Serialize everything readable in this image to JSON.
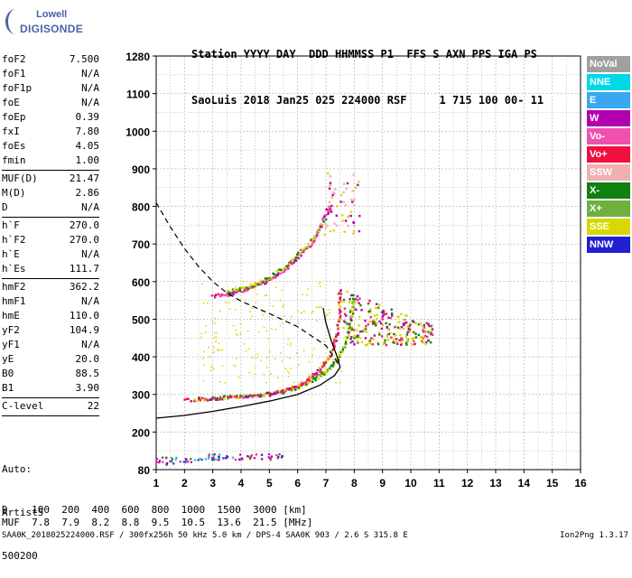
{
  "logo": {
    "line1": "Lowell",
    "line2": "DIGISONDE"
  },
  "header": {
    "line1": "Station YYYY DAY  DDD HHMMSS P1  FFS S AXN PPS IGA PS",
    "line2": "SaoLuis 2018 Jan25 025 224000 RSF     1 715 100 00- 11"
  },
  "params": [
    {
      "name": "foF2",
      "value": "7.500"
    },
    {
      "name": "foF1",
      "value": "N/A"
    },
    {
      "name": "foF1p",
      "value": "N/A"
    },
    {
      "name": "foE",
      "value": "N/A"
    },
    {
      "name": "foEp",
      "value": "0.39"
    },
    {
      "name": "fxI",
      "value": "7.80"
    },
    {
      "name": "foEs",
      "value": "4.05"
    },
    {
      "name": "fmin",
      "value": "1.00",
      "sep": true
    },
    {
      "name": "MUF(D)",
      "value": "21.47"
    },
    {
      "name": "M(D)",
      "value": "2.86"
    },
    {
      "name": "D",
      "value": "N/A",
      "sep": true
    },
    {
      "name": "h`F",
      "value": "270.0"
    },
    {
      "name": "h`F2",
      "value": "270.0"
    },
    {
      "name": "h`E",
      "value": "N/A"
    },
    {
      "name": "h`Es",
      "value": "111.7",
      "sep": true
    },
    {
      "name": "hmF2",
      "value": "362.2"
    },
    {
      "name": "hmF1",
      "value": "N/A"
    },
    {
      "name": "hmE",
      "value": "110.0"
    },
    {
      "name": "yF2",
      "value": "104.9"
    },
    {
      "name": "yF1",
      "value": "N/A"
    },
    {
      "name": "yE",
      "value": "20.0"
    },
    {
      "name": "B0",
      "value": "88.5"
    },
    {
      "name": "B1",
      "value": "3.90",
      "sep": true
    },
    {
      "name": "C-level",
      "value": "22",
      "sep": true
    }
  ],
  "auto": {
    "line1": "Auto:",
    "line2": "Artist5",
    "line3": "500200"
  },
  "legend": [
    {
      "label": "NoVal",
      "color": "#a0a0a0"
    },
    {
      "label": "NNE",
      "color": "#00d8e8"
    },
    {
      "label": "E",
      "color": "#3aa8f0"
    },
    {
      "label": "W",
      "color": "#b000b0"
    },
    {
      "label": "Vo-",
      "color": "#f050b0"
    },
    {
      "label": "Vo+",
      "color": "#f01040"
    },
    {
      "label": "SSW",
      "color": "#f0b0b0"
    },
    {
      "label": "X-",
      "color": "#108010"
    },
    {
      "label": "X+",
      "color": "#70b040"
    },
    {
      "label": "SSE",
      "color": "#d8d800"
    },
    {
      "label": "NNW",
      "color": "#2020d0"
    }
  ],
  "muf_table": {
    "d_label": "D",
    "d_values": [
      "100",
      "200",
      "400",
      "600",
      "800",
      "1000",
      "1500",
      "3000"
    ],
    "d_unit": "[km]",
    "muf_label": "MUF",
    "muf_values": [
      "7.8",
      "7.9",
      "8.2",
      "8.8",
      "9.5",
      "10.5",
      "13.6",
      "21.5"
    ],
    "muf_unit": "[MHz]"
  },
  "footer": "SAA0K_2018025224000.RSF / 300fx256h 50 kHz 5.0 km / DPS-4 SAA0K 903 / 2.6 S 315.8 E",
  "version": "Ion2Png 1.3.17",
  "chart_data": {
    "type": "scatter",
    "xlim": [
      1,
      16
    ],
    "ylim": [
      80,
      1280
    ],
    "x_ticks": [
      1,
      2,
      3,
      4,
      5,
      6,
      7,
      8,
      9,
      10,
      11,
      12,
      13,
      14,
      15,
      16
    ],
    "y_ticks": [
      80,
      200,
      300,
      400,
      500,
      600,
      700,
      800,
      900,
      1000,
      1100,
      1280
    ],
    "grid": true,
    "colors": {
      "frame": "#000000",
      "grid": "#9a9a9a",
      "profile": "#000000",
      "ordinary": "#e8287a",
      "extraordinary": "#108010",
      "spread": "#d8d800",
      "westward": "#b000b0",
      "low": "#2020d0"
    },
    "trace_o": [
      [
        2.0,
        284
      ],
      [
        3.0,
        288
      ],
      [
        4.0,
        292
      ],
      [
        5.0,
        300
      ],
      [
        5.5,
        310
      ],
      [
        6.0,
        322
      ],
      [
        6.5,
        345
      ],
      [
        6.9,
        375
      ],
      [
        7.2,
        410
      ],
      [
        7.4,
        460
      ],
      [
        7.5,
        520
      ],
      [
        7.5,
        580
      ]
    ],
    "trace_x": [
      [
        2.5,
        288
      ],
      [
        3.5,
        292
      ],
      [
        4.5,
        297
      ],
      [
        5.5,
        306
      ],
      [
        6.0,
        318
      ],
      [
        6.5,
        336
      ],
      [
        7.0,
        360
      ],
      [
        7.4,
        390
      ],
      [
        7.7,
        430
      ],
      [
        7.9,
        500
      ],
      [
        8.0,
        560
      ]
    ],
    "trace_2hop": [
      [
        3.0,
        560
      ],
      [
        3.5,
        566
      ],
      [
        4.0,
        575
      ],
      [
        4.5,
        588
      ],
      [
        5.0,
        605
      ],
      [
        5.5,
        630
      ],
      [
        6.0,
        662
      ],
      [
        6.5,
        700
      ],
      [
        6.8,
        740
      ],
      [
        7.0,
        780
      ],
      [
        7.2,
        800
      ]
    ],
    "trace_2hop_x": [
      [
        3.5,
        570
      ],
      [
        4.0,
        580
      ],
      [
        4.5,
        592
      ],
      [
        5.0,
        610
      ],
      [
        5.5,
        636
      ],
      [
        6.0,
        670
      ],
      [
        6.5,
        708
      ],
      [
        7.0,
        770
      ]
    ],
    "spread_f": [
      [
        7.6,
        480
      ],
      [
        10.8,
        530
      ]
    ],
    "es_trace": [
      [
        1.0,
        105
      ],
      [
        5.5,
        120
      ]
    ],
    "dashed_curve": [
      [
        1.0,
        810
      ],
      [
        1.5,
        745
      ],
      [
        2.0,
        688
      ],
      [
        2.5,
        640
      ],
      [
        3.0,
        600
      ],
      [
        3.5,
        570
      ],
      [
        4.0,
        548
      ],
      [
        5.0,
        515
      ],
      [
        6.0,
        480
      ],
      [
        7.0,
        430
      ],
      [
        7.5,
        375
      ]
    ],
    "profile_curve": [
      [
        1.0,
        237
      ],
      [
        2.0,
        244
      ],
      [
        3.0,
        255
      ],
      [
        4.0,
        268
      ],
      [
        5.0,
        282
      ],
      [
        6.0,
        300
      ],
      [
        6.8,
        325
      ],
      [
        7.3,
        350
      ],
      [
        7.5,
        372
      ],
      [
        7.4,
        400
      ],
      [
        7.2,
        440
      ],
      [
        7.0,
        490
      ],
      [
        6.9,
        530
      ]
    ]
  }
}
